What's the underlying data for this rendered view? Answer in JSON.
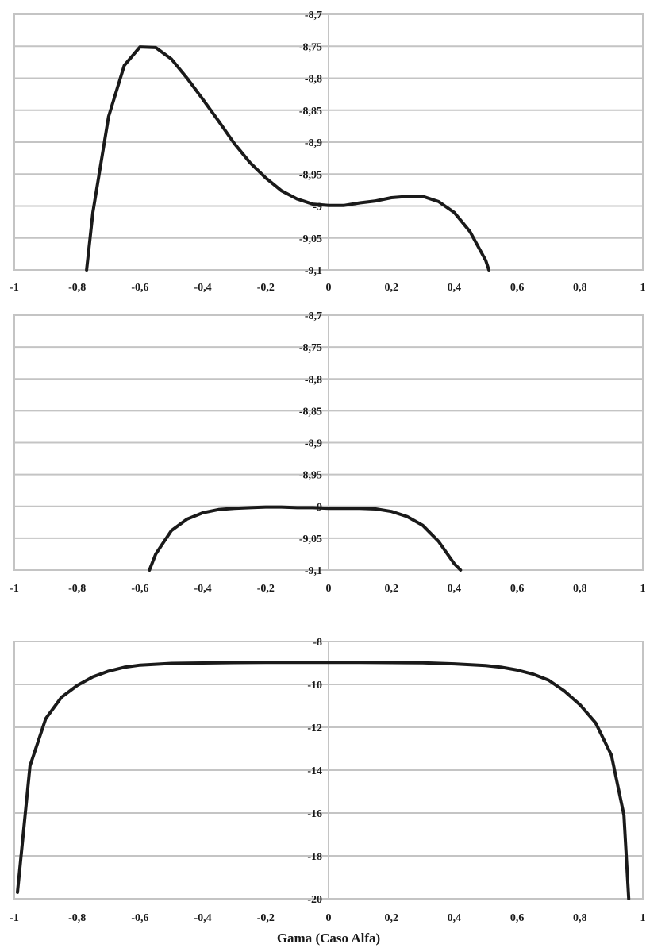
{
  "chart_data": [
    {
      "type": "line",
      "panel": "A",
      "xlim": [
        -1,
        1
      ],
      "ylim": [
        -9.1,
        -8.7
      ],
      "grid": true,
      "x_ticks": [
        "-1",
        "-0,8",
        "-0,6",
        "-0,4",
        "-0,2",
        "0",
        "0,2",
        "0,4",
        "0,6",
        "0,8",
        "1"
      ],
      "y_ticks": [
        "-8,7",
        "-8,75",
        "-8,8",
        "-8,85",
        "-8,9",
        "-8,95",
        "-9",
        "-9,05",
        "-9,1"
      ],
      "series": [
        {
          "x": [
            -0.77,
            -0.75,
            -0.7,
            -0.65,
            -0.6,
            -0.55,
            -0.5,
            -0.45,
            -0.4,
            -0.35,
            -0.3,
            -0.25,
            -0.2,
            -0.15,
            -0.1,
            -0.05,
            0,
            0.05,
            0.1,
            0.15,
            0.2,
            0.25,
            0.3,
            0.35,
            0.4,
            0.45,
            0.5,
            0.51
          ],
          "y": [
            -9.1,
            -9.01,
            -8.86,
            -8.78,
            -8.751,
            -8.752,
            -8.77,
            -8.8,
            -8.833,
            -8.867,
            -8.902,
            -8.932,
            -8.956,
            -8.976,
            -8.989,
            -8.997,
            -8.999,
            -8.999,
            -8.995,
            -8.992,
            -8.987,
            -8.985,
            -8.985,
            -8.993,
            -9.01,
            -9.04,
            -9.085,
            -9.1
          ]
        }
      ]
    },
    {
      "type": "line",
      "panel": "B",
      "xlim": [
        -1,
        1
      ],
      "ylim": [
        -9.1,
        -8.7
      ],
      "grid": true,
      "x_ticks": [
        "-1",
        "-0,8",
        "-0,6",
        "-0,4",
        "-0,2",
        "0",
        "0,2",
        "0,4",
        "0,6",
        "0,8",
        "1"
      ],
      "y_ticks": [
        "-8,7",
        "-8,75",
        "-8,8",
        "-8,85",
        "-8,9",
        "-8,95",
        "-9",
        "-9,05",
        "-9,1"
      ],
      "series": [
        {
          "x": [
            -0.57,
            -0.55,
            -0.5,
            -0.45,
            -0.4,
            -0.35,
            -0.3,
            -0.25,
            -0.2,
            -0.15,
            -0.1,
            -0.05,
            0,
            0.05,
            0.1,
            0.15,
            0.2,
            0.25,
            0.3,
            0.35,
            0.4,
            0.42
          ],
          "y": [
            -9.1,
            -9.075,
            -9.038,
            -9.02,
            -9.01,
            -9.005,
            -9.003,
            -9.002,
            -9.001,
            -9.001,
            -9.002,
            -9.002,
            -9.003,
            -9.003,
            -9.003,
            -9.004,
            -9.008,
            -9.016,
            -9.03,
            -9.055,
            -9.09,
            -9.1
          ]
        }
      ]
    },
    {
      "type": "line",
      "panel": "C",
      "xlim": [
        -1,
        1
      ],
      "ylim": [
        -20,
        -8
      ],
      "grid": true,
      "xlabel": "Gama (Caso Alfa)",
      "x_ticks": [
        "-1",
        "-0,8",
        "-0,6",
        "-0,4",
        "-0,2",
        "0",
        "0,2",
        "0,4",
        "0,6",
        "0,8",
        "1"
      ],
      "y_ticks": [
        "-8",
        "-10",
        "-12",
        "-14",
        "-16",
        "-18",
        "-20"
      ],
      "series": [
        {
          "x": [
            -0.99,
            -0.95,
            -0.9,
            -0.85,
            -0.8,
            -0.75,
            -0.7,
            -0.65,
            -0.6,
            -0.5,
            -0.4,
            -0.3,
            -0.2,
            -0.1,
            0,
            0.1,
            0.2,
            0.3,
            0.4,
            0.5,
            0.55,
            0.6,
            0.65,
            0.7,
            0.75,
            0.8,
            0.85,
            0.9,
            0.94,
            0.955
          ],
          "y": [
            -19.7,
            -13.8,
            -11.6,
            -10.6,
            -10.05,
            -9.65,
            -9.38,
            -9.2,
            -9.1,
            -9.02,
            -9.0,
            -8.98,
            -8.97,
            -8.97,
            -8.97,
            -8.97,
            -8.98,
            -8.99,
            -9.04,
            -9.12,
            -9.2,
            -9.33,
            -9.52,
            -9.8,
            -10.3,
            -10.95,
            -11.8,
            -13.3,
            -16.1,
            -20
          ]
        }
      ]
    }
  ]
}
